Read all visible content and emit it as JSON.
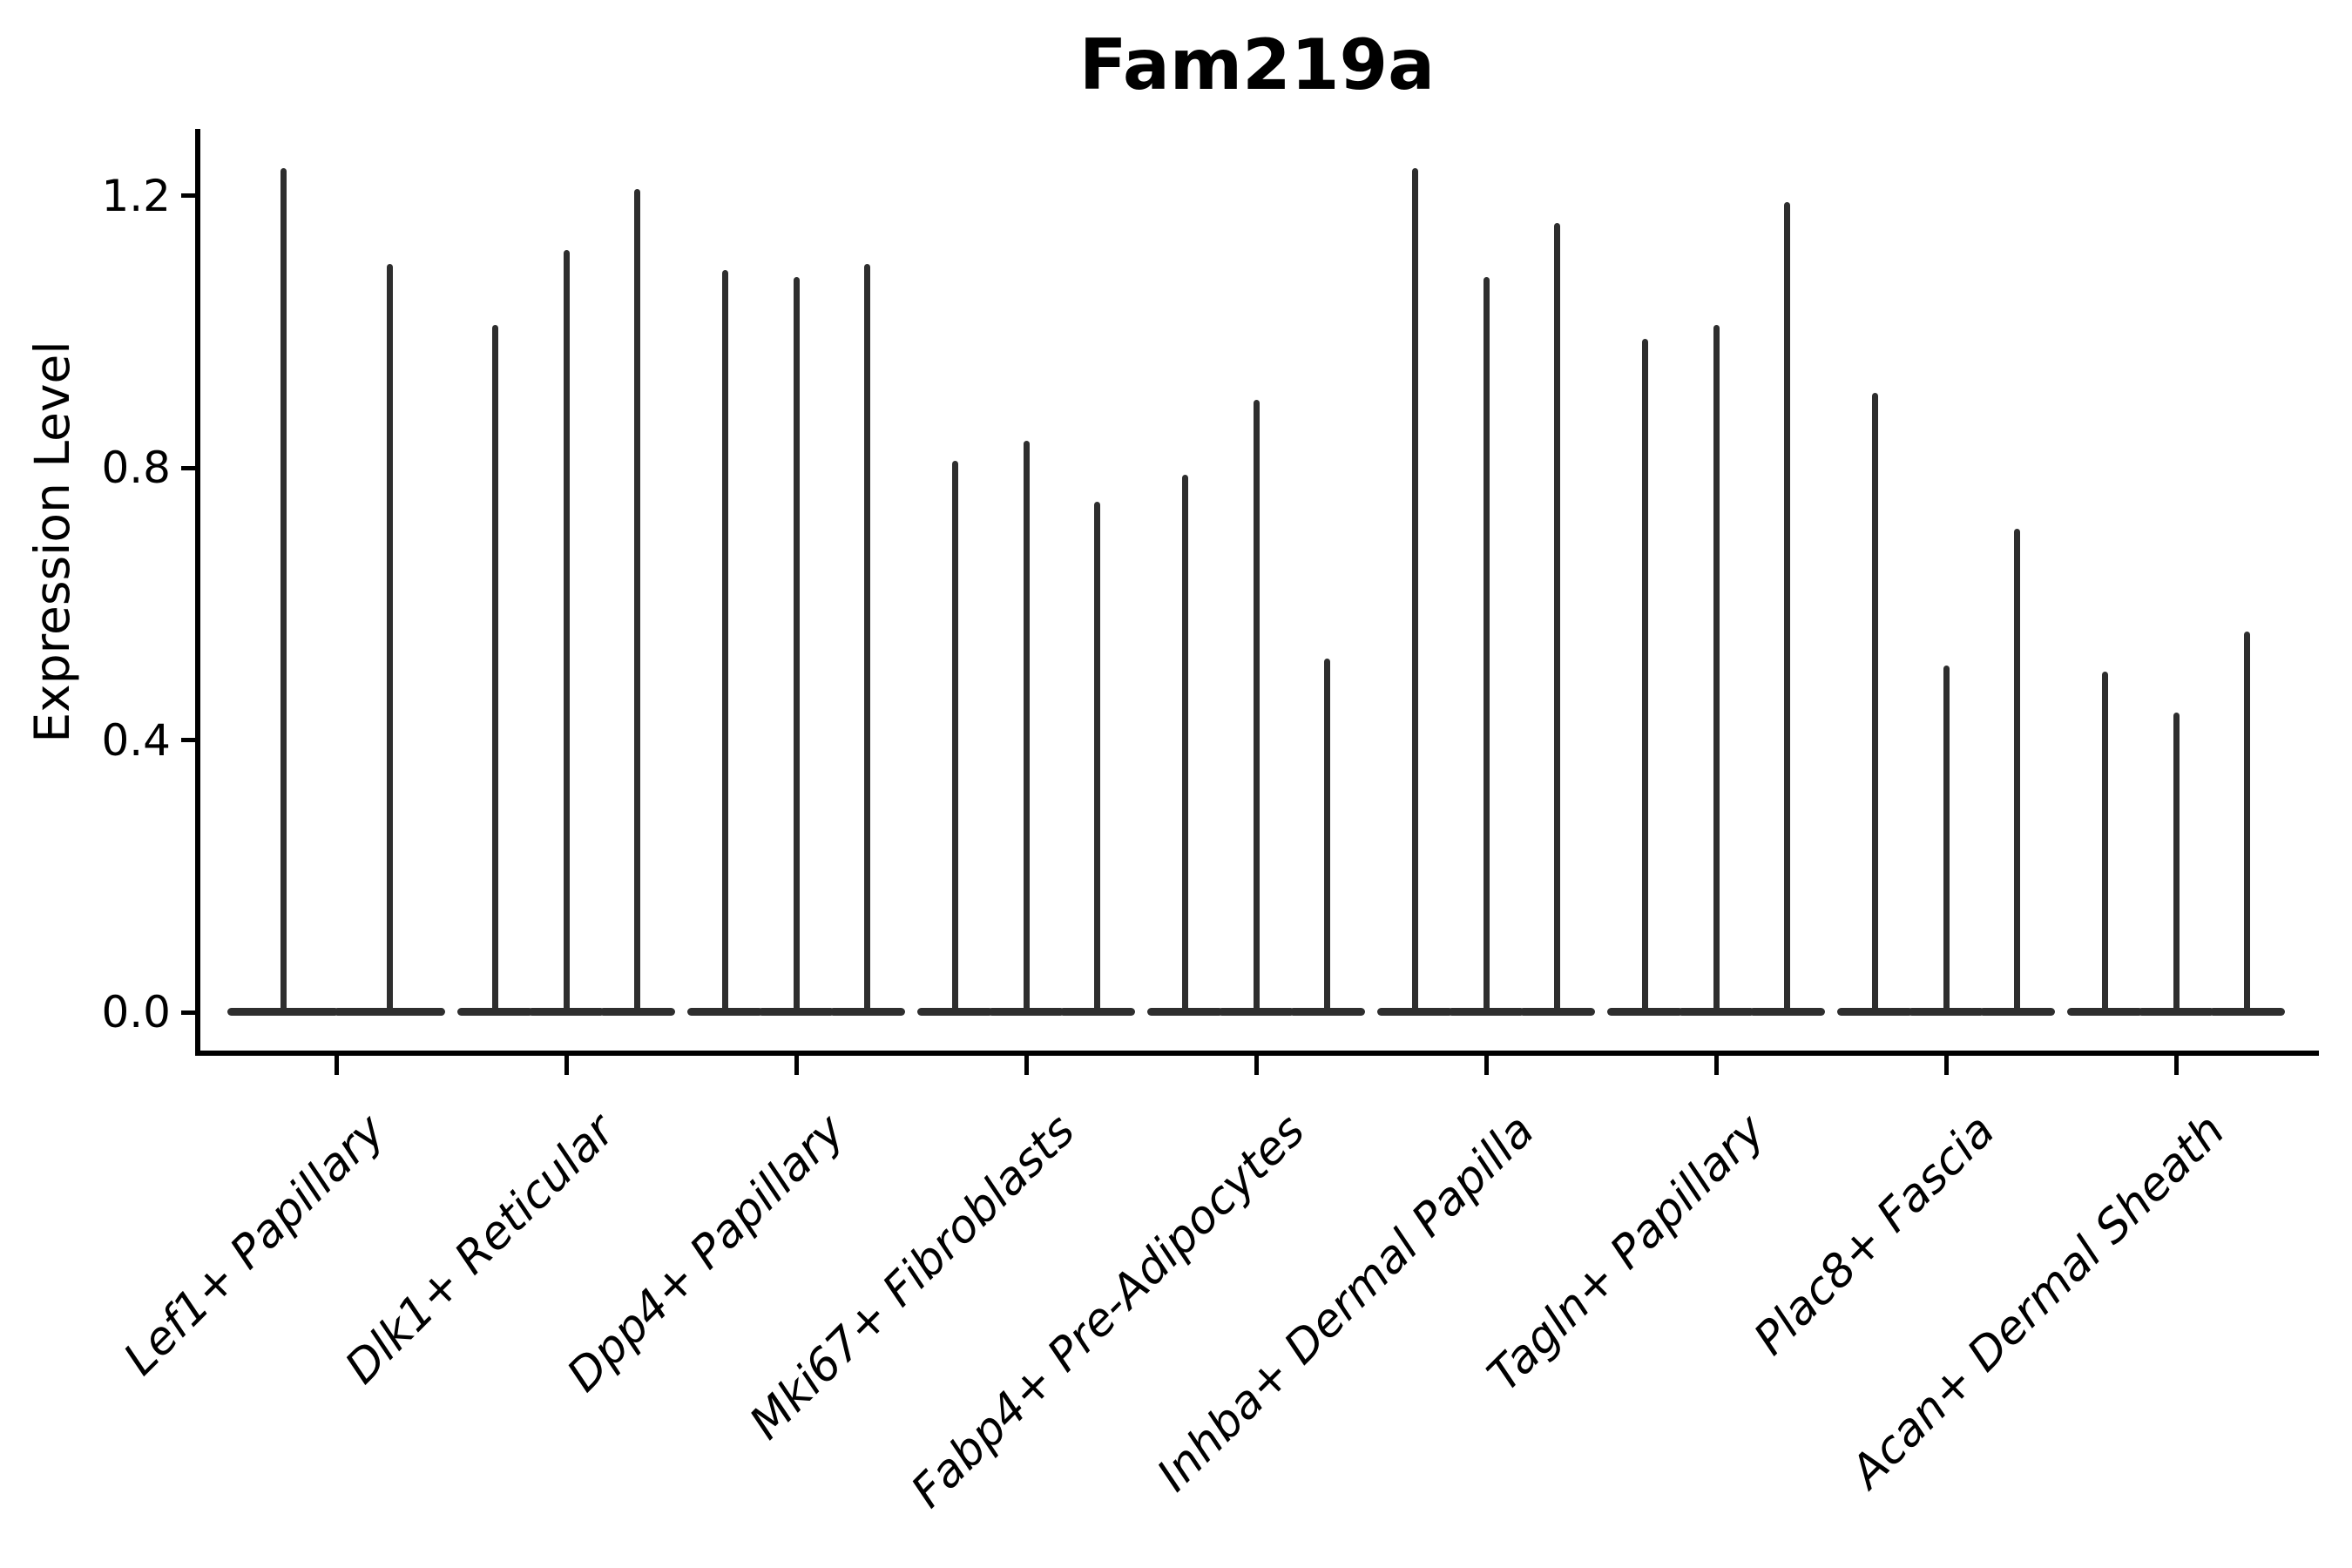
{
  "chart_data": {
    "type": "violin",
    "title": "Fam219a",
    "ylabel": "Expression Level",
    "xlabel": "",
    "categories": [
      "Lef1+ Papillary",
      "Dlk1+ Reticular",
      "Dpp4+ Papillary",
      "Mki67+ Fibroblasts",
      "Fabp4+ Pre-Adipocytes",
      "Inhba+ Dermal Papilla",
      "Tagln+ Papillary",
      "Plac8+ Fascia",
      "Acan+ Dermal Sheath"
    ],
    "violins_per_category": [
      2,
      3,
      3,
      3,
      3,
      3,
      3,
      3,
      3
    ],
    "series": [
      {
        "name": "Lef1+ Papillary",
        "max_expression": [
          1.24,
          1.1
        ]
      },
      {
        "name": "Dlk1+ Reticular",
        "max_expression": [
          1.01,
          1.12,
          1.21
        ]
      },
      {
        "name": "Dpp4+ Papillary",
        "max_expression": [
          1.09,
          1.08,
          1.1
        ]
      },
      {
        "name": "Mki67+ Fibroblasts",
        "max_expression": [
          0.81,
          0.84,
          0.75
        ]
      },
      {
        "name": "Fabp4+ Pre-Adipocytes",
        "max_expression": [
          0.79,
          0.9,
          0.52
        ]
      },
      {
        "name": "Inhba+ Dermal Papilla",
        "max_expression": [
          1.24,
          1.08,
          1.16
        ]
      },
      {
        "name": "Tagln+ Papillary",
        "max_expression": [
          0.99,
          1.01,
          1.19
        ]
      },
      {
        "name": "Plac8+ Fascia",
        "max_expression": [
          0.91,
          0.51,
          0.71
        ]
      },
      {
        "name": "Acan+ Dermal Sheath",
        "max_expression": [
          0.5,
          0.44,
          0.56
        ]
      }
    ],
    "distribution_note": "each violin is a narrow spike from 0 up to its max value with the density mass concentrated in a flat bulge at 0",
    "yticks": [
      "0.0",
      "0.4",
      "0.8",
      "1.2"
    ],
    "ytick_values": [
      0.0,
      0.4,
      0.8,
      1.2
    ],
    "ylim": [
      -0.06,
      1.3
    ],
    "grid": false,
    "legend": "none",
    "colors": {
      "violin": "#2e2e2e",
      "axis": "#000000",
      "text": "#000000",
      "background": "#ffffff"
    }
  }
}
